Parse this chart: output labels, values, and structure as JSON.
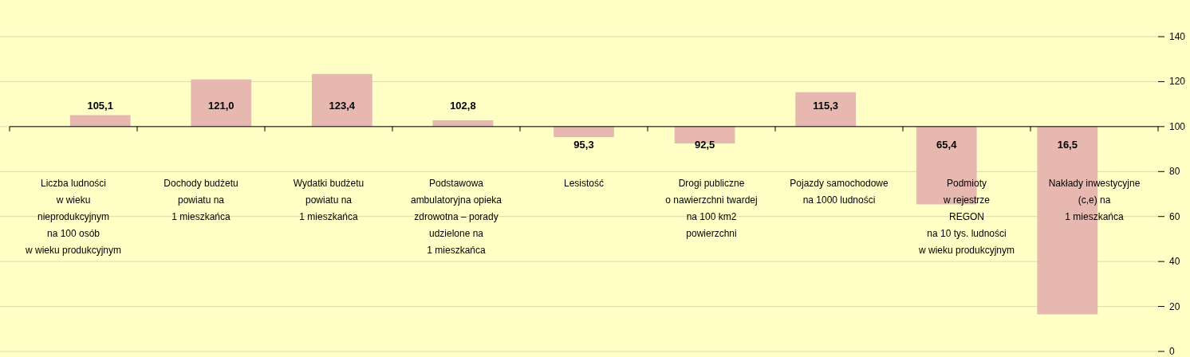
{
  "chart_data": {
    "type": "bar",
    "categories": [
      "Liczba ludności\nw wieku\nnieprodukcyjnym\nna 100 osób\nw wieku produkcyjnym",
      "Dochody budżetu\npowiatu na\n1 mieszkańca",
      "Wydatki budżetu\npowiatu na\n1 mieszkańca",
      "Podstawowa\nambulatoryjna opieka\nzdrowotna – porady\nudzielone na\n1 mieszkańca",
      "Lesistość",
      "Drogi publiczne\no nawierzchni twardej\nna 100 km2\npowierzchni",
      "Pojazdy samochodowe\nna 1000 ludności",
      "Podmioty\nw rejestrze\nREGON\nna 10 tys. ludności\nw wieku produkcyjnym",
      "Nakłady inwestycyjne\n(c,e) na\n1 mieszkańca"
    ],
    "base": [
      100,
      100,
      100,
      100,
      100,
      100,
      100,
      100,
      100
    ],
    "values": [
      5.1,
      21.0,
      23.4,
      2.8,
      -4.7,
      -7.5,
      15.3,
      -34.6,
      -83.5
    ],
    "value_labels": [
      "105,1",
      "121,0",
      "123,4",
      "102,8",
      "95,3",
      "92,5",
      "115,3",
      "65,4",
      "16,5"
    ],
    "color": "#e6b8b0",
    "ylim": [
      0,
      140
    ],
    "yticks": [
      0,
      20,
      40,
      60,
      80,
      100,
      120,
      140
    ],
    "grid": "y",
    "ref_lines": [
      {
        "axis": "y",
        "value": 100,
        "color": "#000000"
      }
    ]
  }
}
